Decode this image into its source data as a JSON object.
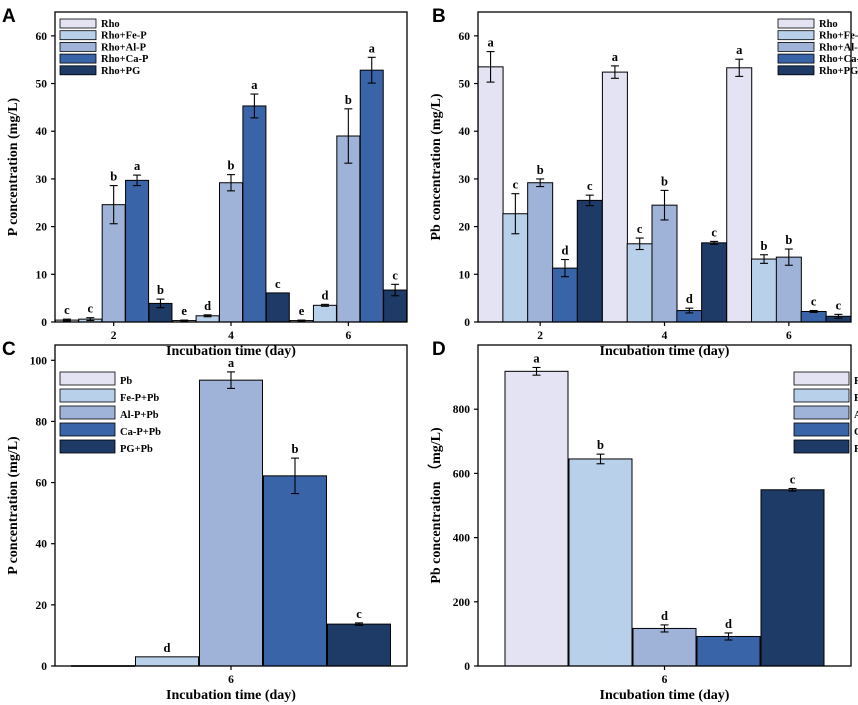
{
  "chart_data": [
    {
      "panel": "A",
      "type": "bar",
      "categories": [
        "2",
        "4",
        "6"
      ],
      "xlabel": "Incubation time (day)",
      "ylabel": "P concentration (mg/L)",
      "ylim": [
        0,
        65
      ],
      "yticks": [
        0,
        10,
        20,
        30,
        40,
        50,
        60
      ],
      "legend_position": "top-left",
      "series": [
        {
          "name": "Rho",
          "color": "#e3e3f3",
          "values": [
            0.4,
            0.3,
            0.3
          ],
          "errors": [
            0.2,
            0.1,
            0.1
          ],
          "labels": [
            "c",
            "e",
            "e"
          ]
        },
        {
          "name": "Rho+Fe-P",
          "color": "#b9d0ea",
          "values": [
            0.6,
            1.3,
            3.5
          ],
          "errors": [
            0.3,
            0.2,
            0.2
          ],
          "labels": [
            "c",
            "d",
            "d"
          ]
        },
        {
          "name": "Rho+Al-P",
          "color": "#9fb3d8",
          "values": [
            24.6,
            29.2,
            39.0
          ],
          "errors": [
            4.0,
            1.7,
            5.7
          ],
          "labels": [
            "b",
            "b",
            "b"
          ]
        },
        {
          "name": "Rho+Ca-P",
          "color": "#3a64a8",
          "values": [
            29.7,
            45.3,
            52.8
          ],
          "errors": [
            1.1,
            2.5,
            2.7
          ],
          "labels": [
            "a",
            "a",
            "a"
          ]
        },
        {
          "name": "Rho+PG",
          "color": "#1e3a66",
          "values": [
            3.9,
            6.1,
            6.7
          ],
          "errors": [
            0.9,
            0.0,
            1.2
          ],
          "labels": [
            "b",
            "c",
            "c"
          ]
        }
      ]
    },
    {
      "panel": "B",
      "type": "bar",
      "categories": [
        "2",
        "4",
        "6"
      ],
      "xlabel": "Incubation time (day)",
      "ylabel": "Pb concentration (mg/L)",
      "ylim": [
        0,
        65
      ],
      "yticks": [
        0,
        10,
        20,
        30,
        40,
        50,
        60
      ],
      "legend_position": "top-right",
      "series": [
        {
          "name": "Rho",
          "color": "#e3e3f3",
          "values": [
            53.5,
            52.4,
            53.3
          ],
          "errors": [
            3.2,
            1.3,
            1.8
          ],
          "labels": [
            "a",
            "a",
            "a"
          ]
        },
        {
          "name": "Rho+Fe-P",
          "color": "#b9d0ea",
          "values": [
            22.7,
            16.4,
            13.2
          ],
          "errors": [
            4.2,
            1.2,
            0.9
          ],
          "labels": [
            "c",
            "c",
            "b"
          ]
        },
        {
          "name": "Rho+Al-P",
          "color": "#9fb3d8",
          "values": [
            29.2,
            24.5,
            13.6
          ],
          "errors": [
            0.8,
            3.1,
            1.7
          ],
          "labels": [
            "b",
            "b",
            "b"
          ]
        },
        {
          "name": "Rho+Ca-P",
          "color": "#3a64a8",
          "values": [
            11.3,
            2.4,
            2.2
          ],
          "errors": [
            1.8,
            0.5,
            0.2
          ],
          "labels": [
            "d",
            "d",
            "c"
          ]
        },
        {
          "name": "Rho+PG",
          "color": "#1e3a66",
          "values": [
            25.5,
            16.6,
            1.2
          ],
          "errors": [
            1.1,
            0.3,
            0.4
          ],
          "labels": [
            "c",
            "c",
            "c"
          ]
        }
      ]
    },
    {
      "panel": "C",
      "type": "bar",
      "categories": [
        "6"
      ],
      "xlabel": "Incubation time (day)",
      "ylabel": "P concentration (mg/L)",
      "ylim": [
        0,
        105
      ],
      "yticks": [
        0,
        20,
        40,
        60,
        80,
        100
      ],
      "legend_position": "top-left",
      "series": [
        {
          "name": "Pb",
          "color": "#e3e3f3",
          "values": [
            0.1
          ],
          "errors": [
            0.0
          ],
          "labels": [
            ""
          ]
        },
        {
          "name": "Fe-P+Pb",
          "color": "#b9d0ea",
          "values": [
            3.0
          ],
          "errors": [
            0.0
          ],
          "labels": [
            "d"
          ]
        },
        {
          "name": "Al-P+Pb",
          "color": "#9fb3d8",
          "values": [
            93.5
          ],
          "errors": [
            2.7
          ],
          "labels": [
            "a"
          ]
        },
        {
          "name": "Ca-P+Pb",
          "color": "#3a64a8",
          "values": [
            62.2
          ],
          "errors": [
            5.8
          ],
          "labels": [
            "b"
          ]
        },
        {
          "name": "PG+Pb",
          "color": "#1e3a66",
          "values": [
            13.7
          ],
          "errors": [
            0.4
          ],
          "labels": [
            "c"
          ]
        }
      ]
    },
    {
      "panel": "D",
      "type": "bar",
      "categories": [
        "6"
      ],
      "xlabel": "Incubation time (day)",
      "ylabel": "Pb concentration （mg/L)",
      "ylim": [
        0,
        1000
      ],
      "yticks": [
        0,
        200,
        400,
        600,
        800
      ],
      "legend_position": "top-right",
      "series": [
        {
          "name": "Pb",
          "color": "#e3e3f3",
          "values": [
            918
          ],
          "errors": [
            12
          ],
          "labels": [
            "a"
          ]
        },
        {
          "name": "Fe-P+Pb",
          "color": "#b9d0ea",
          "values": [
            645
          ],
          "errors": [
            15
          ],
          "labels": [
            "b"
          ]
        },
        {
          "name": "Al-P+Pb",
          "color": "#9fb3d8",
          "values": [
            117
          ],
          "errors": [
            11
          ],
          "labels": [
            "d"
          ]
        },
        {
          "name": "Ca-P+Pb",
          "color": "#3a64a8",
          "values": [
            92
          ],
          "errors": [
            11
          ],
          "labels": [
            "d"
          ]
        },
        {
          "name": "PG+Pb",
          "color": "#1e3a66",
          "values": [
            549
          ],
          "errors": [
            4
          ],
          "labels": [
            "c"
          ]
        }
      ]
    }
  ]
}
